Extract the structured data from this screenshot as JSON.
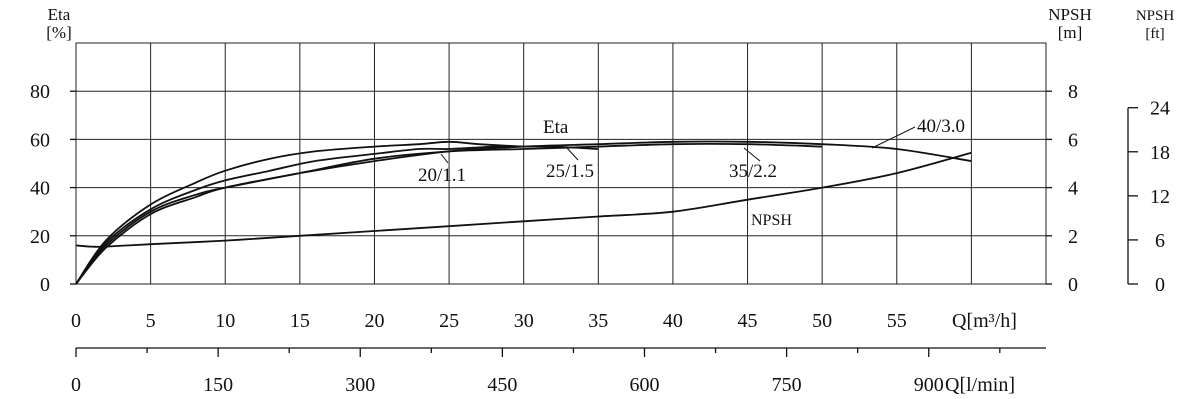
{
  "chart_data": {
    "type": "line",
    "x_unit_label": "Q[m³/h]",
    "x2_unit_label": "Q[l/min]",
    "xlim": [
      0,
      65
    ],
    "x_ticks": [
      0,
      5,
      10,
      15,
      20,
      25,
      30,
      35,
      40,
      45,
      50,
      55
    ],
    "x2_ticks": [
      0,
      150,
      300,
      450,
      600,
      750,
      900
    ],
    "x2_lim": [
      0,
      1050
    ],
    "y_left": {
      "label_top": "Eta",
      "unit": "[%]",
      "lim": [
        0,
        100
      ],
      "ticks": [
        0,
        20,
        40,
        60,
        80
      ]
    },
    "y_right_m": {
      "label_top": "NPSH",
      "unit": "[m]",
      "lim": [
        0,
        10
      ],
      "ticks": [
        0,
        2,
        4,
        6,
        8
      ]
    },
    "y_right_ft": {
      "label_top": "NPSH",
      "unit": "[ft]",
      "ticks": [
        0,
        6,
        12,
        18,
        24
      ]
    },
    "grid": true,
    "series": [
      {
        "name": "20/1.1",
        "axis": "eta",
        "x": [
          0,
          2,
          5,
          8,
          10,
          13,
          16,
          20,
          23,
          25,
          27,
          30
        ],
        "y": [
          0,
          18,
          33,
          42,
          47,
          52,
          55,
          57,
          58,
          59,
          58,
          57
        ]
      },
      {
        "name": "25/1.5",
        "axis": "eta",
        "x": [
          0,
          2,
          5,
          8,
          10,
          13,
          16,
          20,
          23,
          25,
          28,
          30,
          32,
          35
        ],
        "y": [
          0,
          17,
          31,
          39,
          43,
          47,
          51,
          54,
          56,
          56,
          57,
          57,
          57,
          56
        ]
      },
      {
        "name": "35/2.2",
        "axis": "eta",
        "x": [
          0,
          2,
          5,
          8,
          10,
          15,
          20,
          25,
          30,
          35,
          40,
          45,
          50
        ],
        "y": [
          0,
          16,
          30,
          37,
          40,
          46,
          52,
          55,
          56,
          57,
          58,
          58,
          57
        ]
      },
      {
        "name": "40/3.0",
        "axis": "eta",
        "x": [
          0,
          2,
          5,
          8,
          10,
          15,
          20,
          25,
          30,
          35,
          40,
          45,
          50,
          55,
          60
        ],
        "y": [
          0,
          15,
          29,
          36,
          40,
          46,
          51,
          55,
          57,
          58,
          59,
          59,
          58,
          56,
          51
        ]
      },
      {
        "name": "NPSH",
        "axis": "npsh_m",
        "x": [
          0,
          1,
          2,
          5,
          10,
          15,
          20,
          25,
          30,
          35,
          40,
          45,
          50,
          55,
          60
        ],
        "y": [
          1.6,
          1.55,
          1.55,
          1.65,
          1.8,
          2.0,
          2.2,
          2.4,
          2.6,
          2.8,
          3.0,
          3.5,
          4.0,
          4.6,
          5.45
        ]
      }
    ],
    "annotations": [
      {
        "text": "Eta"
      },
      {
        "text": "20/1.1"
      },
      {
        "text": "25/1.5"
      },
      {
        "text": "35/2.2"
      },
      {
        "text": "40/3.0"
      },
      {
        "text": "NPSH"
      }
    ]
  }
}
